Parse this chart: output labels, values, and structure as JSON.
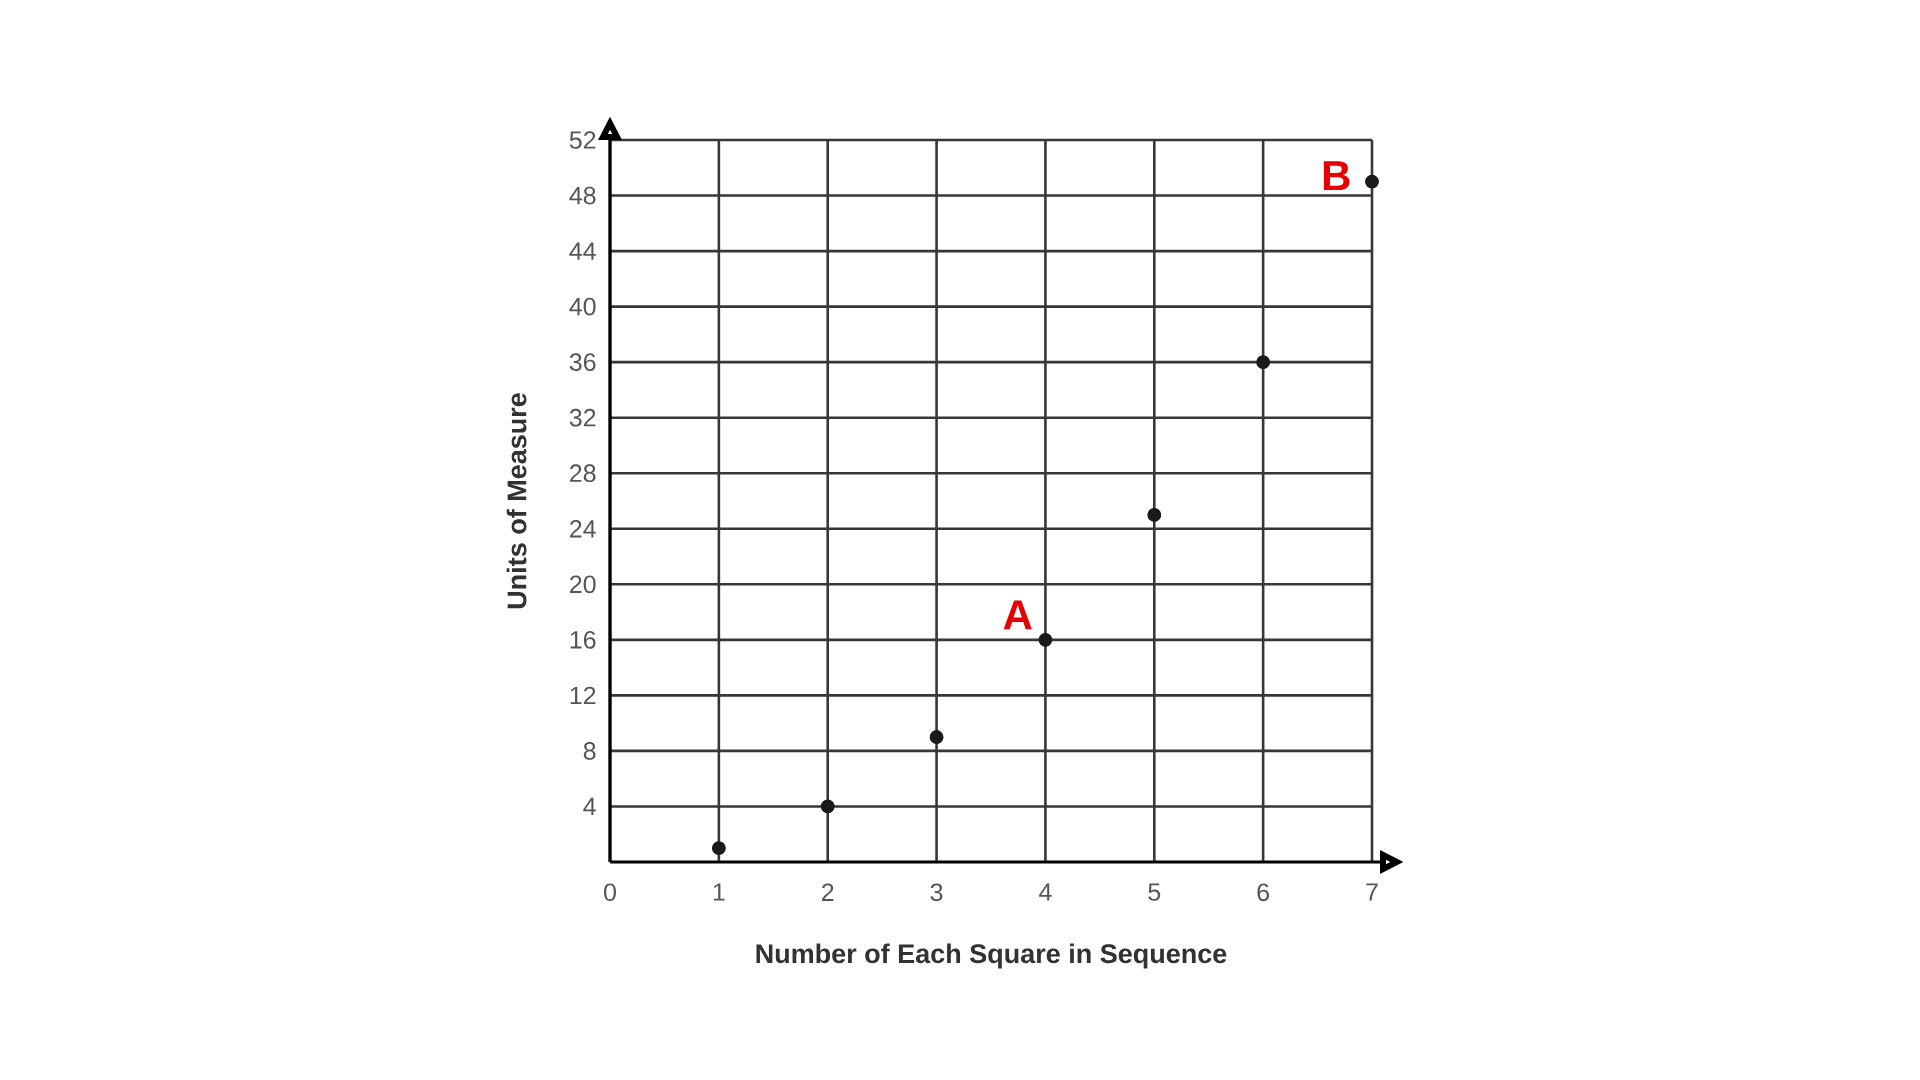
{
  "chart_data": {
    "type": "scatter",
    "xlabel": "Number of Each Square in Sequence",
    "ylabel": "Units of Measure",
    "x": [
      1,
      2,
      3,
      4,
      5,
      6,
      7
    ],
    "values": [
      1,
      4,
      9,
      16,
      25,
      36,
      49
    ],
    "color": "#1a1a1a",
    "marker": "circle",
    "xlim": [
      0,
      7
    ],
    "ylim": [
      0,
      52
    ],
    "xticks": [
      0,
      1,
      2,
      3,
      4,
      5,
      6,
      7
    ],
    "yticks": [
      4,
      8,
      12,
      16,
      20,
      24,
      28,
      32,
      36,
      40,
      44,
      48,
      52
    ],
    "grid": true,
    "annotations": [
      {
        "text": "A",
        "x": 4,
        "y": 16
      },
      {
        "text": "B",
        "x": 7,
        "y": 49
      }
    ]
  }
}
